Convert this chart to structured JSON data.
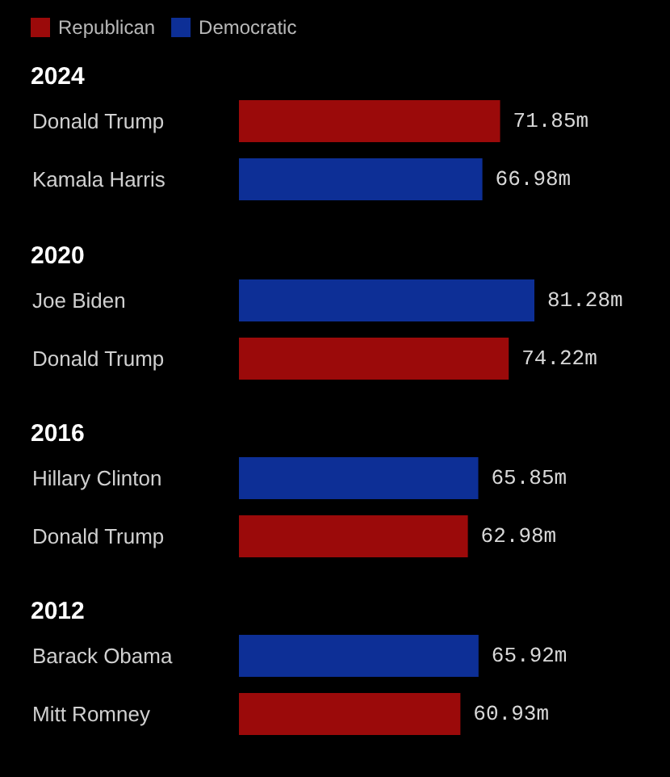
{
  "chart_data": [
    {
      "type": "bar",
      "orientation": "horizontal",
      "stacked": true,
      "title": "2024",
      "categories": [
        "Donald Trump",
        "Kamala Harris"
      ],
      "legend": "top left",
      "series": [
        {
          "name": "Republican",
          "color": "#9b0a0a",
          "values": [
            71.85,
            null
          ],
          "value_labels": [
            "71.85m",
            null
          ]
        },
        {
          "name": "Democratic",
          "color": "#0d2f96",
          "values": [
            null,
            66.98
          ],
          "value_labels": [
            null,
            "66.98m"
          ]
        }
      ]
    },
    {
      "type": "bar",
      "orientation": "horizontal",
      "stacked": true,
      "title": "2020",
      "categories": [
        "Joe Biden",
        "Donald Trump"
      ],
      "series": [
        {
          "color": "#9b0a0a",
          "values": [
            null,
            74.22
          ],
          "value_labels": [
            null,
            "74.22m"
          ]
        },
        {
          "color": "#0d2f96",
          "values": [
            81.28,
            null
          ],
          "value_labels": [
            "81.28m",
            null
          ]
        }
      ]
    },
    {
      "type": "bar",
      "orientation": "horizontal",
      "stacked": true,
      "title": "2016",
      "categories": [
        "Hillary Clinton",
        "Donald Trump"
      ],
      "series": [
        {
          "color": "#9b0a0a",
          "values": [
            null,
            62.98
          ],
          "value_labels": [
            null,
            "62.98m"
          ]
        },
        {
          "color": "#0d2f96",
          "values": [
            65.85,
            null
          ],
          "value_labels": [
            "65.85m",
            null
          ]
        }
      ]
    },
    {
      "type": "bar",
      "orientation": "horizontal",
      "stacked": true,
      "title": "2012",
      "categories": [
        "Barack Obama",
        "Mitt Romney"
      ],
      "series": [
        {
          "color": "#9b0a0a",
          "values": [
            null,
            60.93
          ],
          "value_labels": [
            null,
            "60.93m"
          ]
        },
        {
          "color": "#0d2f96",
          "values": [
            65.92,
            null
          ],
          "value_labels": [
            "65.92m",
            null
          ]
        }
      ]
    }
  ]
}
